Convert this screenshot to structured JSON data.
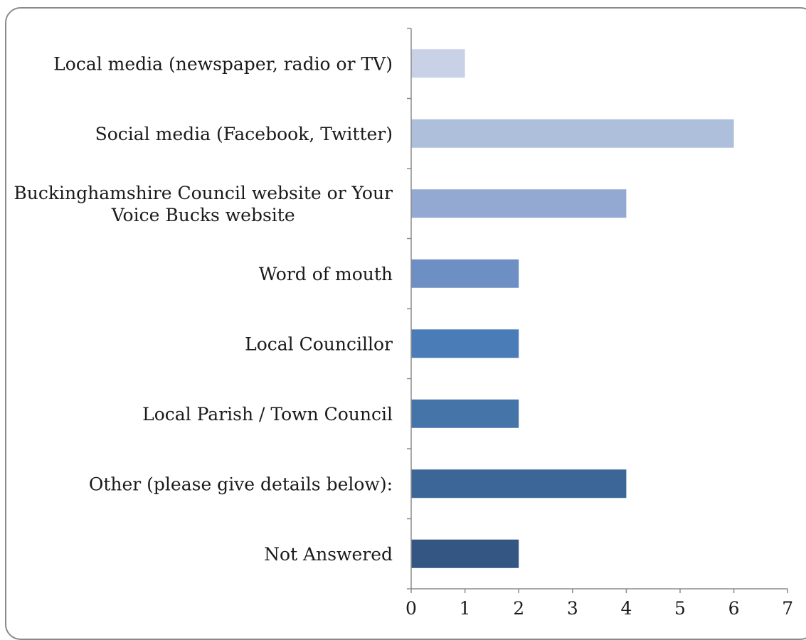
{
  "chart_data": {
    "type": "bar",
    "orientation": "horizontal",
    "categories": [
      "Local media (newspaper, radio or TV)",
      "Social media (Facebook, Twitter)",
      "Buckinghamshire Council website or Your Voice Bucks website",
      "Word of mouth",
      "Local Councillor",
      "Local Parish / Town Council",
      "Other (please give details below):",
      "Not Answered"
    ],
    "category_lines": [
      [
        "Local media (newspaper, radio or TV)"
      ],
      [
        "Social media (Facebook, Twitter)"
      ],
      [
        "Buckinghamshire Council website or Your",
        "Voice Bucks website"
      ],
      [
        "Word of mouth"
      ],
      [
        "Local Councillor"
      ],
      [
        "Local Parish / Town Council"
      ],
      [
        "Other (please give details below):"
      ],
      [
        "Not Answered"
      ]
    ],
    "values": [
      1,
      6,
      4,
      2,
      2,
      2,
      4,
      2
    ],
    "bar_colors": [
      "#c8d1e6",
      "#aebfdb",
      "#94a9d1",
      "#6e8fc4",
      "#4a7db8",
      "#4574a9",
      "#3d6698",
      "#335683"
    ],
    "xlim": [
      0,
      7
    ],
    "xticks": [
      0,
      1,
      2,
      3,
      4,
      5,
      6,
      7
    ],
    "grid": false,
    "legend": "none",
    "title": "",
    "xlabel": "",
    "ylabel": ""
  }
}
